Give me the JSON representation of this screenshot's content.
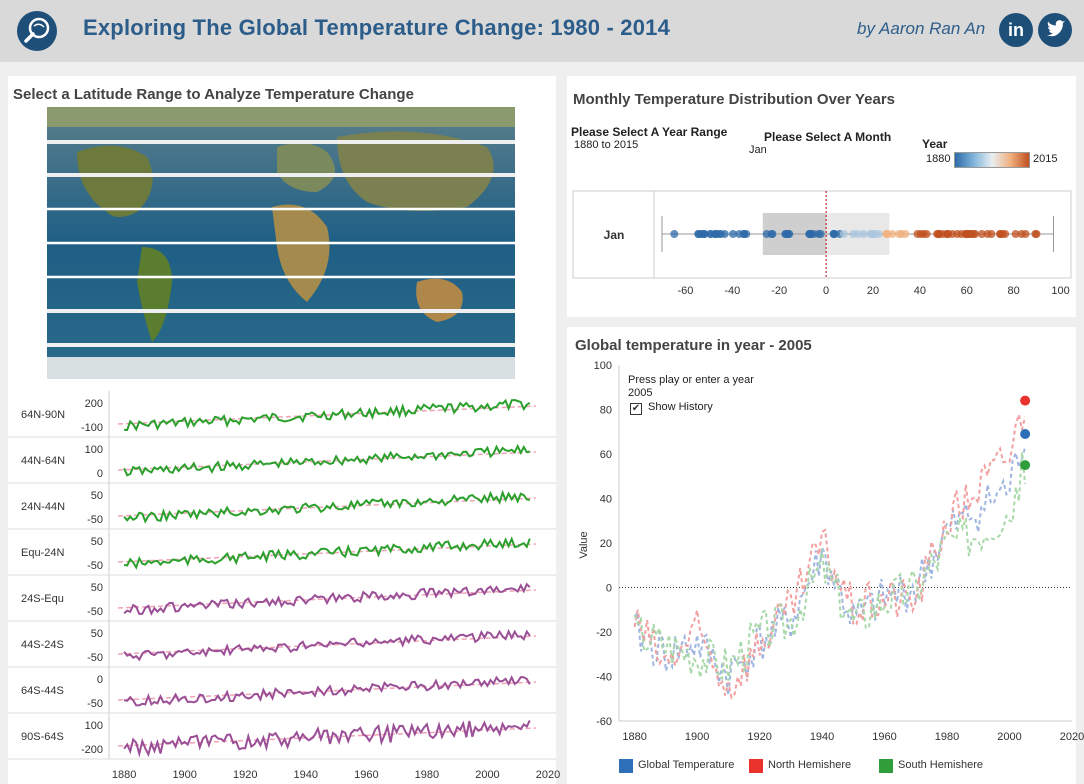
{
  "header": {
    "title": "Exploring The Global Temperature Change: 1980 - 2014",
    "byline": "by Aaron Ran An",
    "linkedin": "in",
    "twitter_icon": "twitter-bird-icon",
    "logo_icon": "globe-search-icon"
  },
  "map_panel": {
    "title": "Select a Latitude Range to Analyze Temperature Change"
  },
  "latitude_bands": {
    "labels": [
      "64N-90N",
      "44N-64N",
      "24N-44N",
      "Equ-24N",
      "24S-Equ",
      "44S-24S",
      "64S-44S",
      "90S-64S"
    ],
    "ticks": [
      [
        "200",
        "-100"
      ],
      [
        "100",
        "0"
      ],
      [
        "50",
        "-50"
      ],
      [
        "50",
        "-50"
      ],
      [
        "50",
        "-50"
      ],
      [
        "50",
        "-50"
      ],
      [
        "0",
        "-50"
      ],
      [
        "100",
        "-200"
      ]
    ],
    "x_ticks": [
      "1880",
      "1900",
      "1920",
      "1940",
      "1960",
      "1980",
      "2000",
      "2020"
    ],
    "colors": {
      "north": "#2ca02c",
      "south": "#9b4f96",
      "trend": "#f0a3b5"
    }
  },
  "distribution": {
    "title": "Monthly Temperature Distribution Over Years",
    "year_range_label": "Please Select A Year Range",
    "year_range_value": "1880 to 2015",
    "month_label": "Please Select A Month",
    "month_value": "Jan",
    "legend_title": "Year",
    "legend_min": "1880",
    "legend_max": "2015",
    "row_label": "Jan",
    "x_ticks": [
      "-60",
      "-40",
      "-20",
      "0",
      "20",
      "40",
      "60",
      "80",
      "100"
    ]
  },
  "global": {
    "title": "Global temperature in year - 2005",
    "play_label": "Press play or enter a year",
    "year_value": "2005",
    "history_label": "Show History",
    "ylabel": "Value",
    "y_ticks": [
      "100",
      "80",
      "60",
      "40",
      "20",
      "0",
      "-20",
      "-40",
      "-60"
    ],
    "x_ticks": [
      "1880",
      "1900",
      "1920",
      "1940",
      "1960",
      "1980",
      "2000",
      "2020"
    ],
    "legend": [
      {
        "name": "Global Temperature",
        "color": "#2e6fba"
      },
      {
        "name": "North Hemishere",
        "color": "#e8322b"
      },
      {
        "name": "South Hemishere",
        "color": "#2f9e3a"
      }
    ]
  },
  "chart_data": [
    {
      "type": "line",
      "title": "Global temperature in year - 2005",
      "ylabel": "Value",
      "ylim": [
        -60,
        100
      ],
      "xlim": [
        1875,
        2020
      ],
      "x": [
        1880,
        1890,
        1900,
        1910,
        1920,
        1930,
        1940,
        1950,
        1960,
        1970,
        1980,
        1990,
        2000,
        2005
      ],
      "series": [
        {
          "name": "Global Temperature",
          "values": [
            -20,
            -30,
            -25,
            -40,
            -25,
            -15,
            15,
            -15,
            -5,
            0,
            25,
            35,
            45,
            69
          ]
        },
        {
          "name": "North Hemishere",
          "values": [
            -15,
            -35,
            -20,
            -45,
            -25,
            -10,
            20,
            -10,
            -5,
            -5,
            30,
            45,
            60,
            84
          ]
        },
        {
          "name": "South Hemishere",
          "values": [
            -20,
            -25,
            -30,
            -35,
            -20,
            -15,
            10,
            -15,
            -5,
            0,
            20,
            25,
            35,
            55
          ]
        }
      ],
      "markers": {
        "year": 2005,
        "values": {
          "Global Temperature": 69,
          "North Hemishere": 84,
          "South Hemishere": 55
        }
      }
    },
    {
      "type": "scatter",
      "title": "Monthly Temperature Distribution Over Years",
      "category": "Jan",
      "xlim": [
        -70,
        100
      ],
      "range_box": [
        -27,
        27
      ],
      "whiskers": [
        -70,
        97
      ]
    }
  ]
}
